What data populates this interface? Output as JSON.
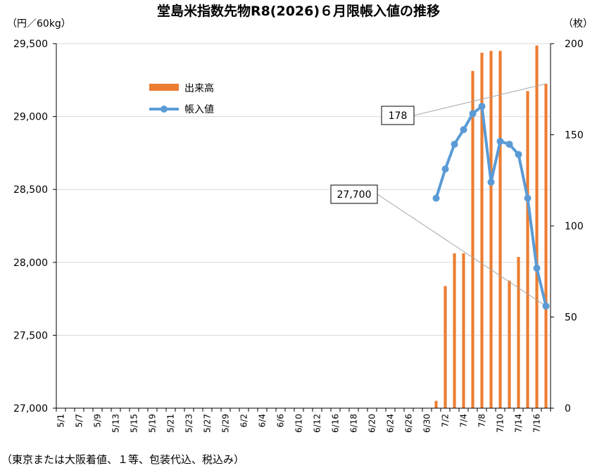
{
  "chart_data": {
    "type": "bar+line",
    "title": "堂島米指数先物R8(2026)６月限帳入値の推移",
    "y_left_unit": "（円／60kg）",
    "y_right_unit": "（枚）",
    "y_left_lim": [
      27000,
      29500
    ],
    "y_left_ticks": [
      27000,
      27500,
      28000,
      28500,
      29000,
      29500
    ],
    "y_left_tick_labels": [
      "27,000",
      "27,500",
      "28,000",
      "28,500",
      "29,000",
      "29,500"
    ],
    "y_right_lim": [
      0,
      200
    ],
    "y_right_ticks": [
      0,
      50,
      100,
      150,
      200
    ],
    "y_right_tick_labels": [
      "0",
      "50",
      "100",
      "150",
      "200"
    ],
    "x_labels": [
      "5/1",
      "5/7",
      "5/9",
      "5/13",
      "5/15",
      "5/19",
      "5/21",
      "5/23",
      "5/27",
      "5/29",
      "6/2",
      "6/4",
      "6/6",
      "6/10",
      "6/12",
      "6/16",
      "6/18",
      "6/20",
      "6/24",
      "6/26",
      "6/30",
      "7/2",
      "7/4",
      "7/8",
      "7/10",
      "7/14",
      "7/16"
    ],
    "categories": [
      "5/1",
      "5/2",
      "5/7",
      "5/8",
      "5/9",
      "5/12",
      "5/13",
      "5/14",
      "5/15",
      "5/16",
      "5/19",
      "5/20",
      "5/21",
      "5/22",
      "5/23",
      "5/26",
      "5/27",
      "5/28",
      "5/29",
      "5/30",
      "6/2",
      "6/3",
      "6/4",
      "6/5",
      "6/6",
      "6/9",
      "6/10",
      "6/11",
      "6/12",
      "6/13",
      "6/16",
      "6/17",
      "6/18",
      "6/19",
      "6/20",
      "6/23",
      "6/24",
      "6/25",
      "6/26",
      "6/27",
      "6/30",
      "7/1",
      "7/2",
      "7/3",
      "7/4",
      "7/7",
      "7/8",
      "7/9",
      "7/10",
      "7/11",
      "7/14",
      "7/15",
      "7/16",
      "7/17"
    ],
    "series": [
      {
        "name": "出来高",
        "axis": "right",
        "kind": "bar",
        "color": "#ED7D31",
        "values": [
          0,
          0,
          0,
          0,
          0,
          0,
          0,
          0,
          0,
          0,
          0,
          0,
          0,
          0,
          0,
          0,
          0,
          0,
          0,
          0,
          0,
          0,
          0,
          0,
          0,
          0,
          0,
          0,
          0,
          0,
          0,
          0,
          0,
          0,
          0,
          0,
          0,
          0,
          0,
          0,
          0,
          4,
          67,
          85,
          85,
          185,
          195,
          196,
          196,
          70,
          83,
          174,
          199,
          178
        ]
      },
      {
        "name": "帳入値",
        "axis": "left",
        "kind": "line",
        "color": "#5B9BD5",
        "values": [
          null,
          null,
          null,
          null,
          null,
          null,
          null,
          null,
          null,
          null,
          null,
          null,
          null,
          null,
          null,
          null,
          null,
          null,
          null,
          null,
          null,
          null,
          null,
          null,
          null,
          null,
          null,
          null,
          null,
          null,
          null,
          null,
          null,
          null,
          null,
          null,
          null,
          null,
          null,
          null,
          null,
          28440,
          28640,
          28810,
          28910,
          29020,
          29070,
          28550,
          28830,
          28810,
          28740,
          28440,
          27960,
          27700
        ]
      }
    ],
    "legend": {
      "placement": "upper-left-inside",
      "items": [
        "出来高",
        "帳入値"
      ]
    },
    "annotations": [
      {
        "text": "178",
        "series": "出来高",
        "category": "7/17"
      },
      {
        "text": "27,700",
        "series": "帳入値",
        "category": "7/17"
      }
    ],
    "grid": "horizontal"
  },
  "footnote": "（東京または大阪着値、１等、包装代込、税込み）"
}
